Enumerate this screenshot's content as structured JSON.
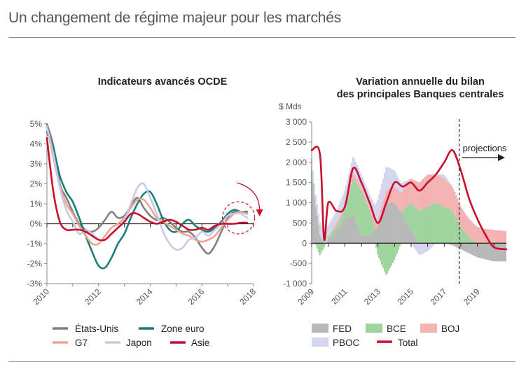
{
  "page_title": "Un changement de régime majeur pour les marchés",
  "colors": {
    "usa": "#808080",
    "euro": "#1a7f7a",
    "g7": "#eda58f",
    "japon": "#c9c9e6",
    "asie": "#c8102e",
    "fed": "#b8b8b8",
    "bce": "#9fd49f",
    "boj": "#f3b3b3",
    "pboc": "#d4d6ee",
    "total": "#c8102e",
    "axis": "#888888",
    "zero": "#222222"
  },
  "chart_data": [
    {
      "type": "line",
      "title": "Indicateurs avancés OCDE",
      "xlabel": "",
      "ylabel": "",
      "xlim": [
        2010,
        2018
      ],
      "ylim": [
        -3,
        5
      ],
      "x_ticks": [
        "2010",
        "2012",
        "2014",
        "2016",
        "2018"
      ],
      "y_ticks": [
        "5%",
        "4%",
        "3%",
        "2%",
        "1%",
        "0%",
        "-1%",
        "-2%",
        "-3%"
      ],
      "x": [
        2010.0,
        2010.25,
        2010.5,
        2010.75,
        2011.0,
        2011.25,
        2011.5,
        2011.75,
        2012.0,
        2012.25,
        2012.5,
        2012.75,
        2013.0,
        2013.25,
        2013.5,
        2013.75,
        2014.0,
        2014.25,
        2014.5,
        2014.75,
        2015.0,
        2015.25,
        2015.5,
        2015.75,
        2016.0,
        2016.25,
        2016.5,
        2016.75,
        2017.0,
        2017.25,
        2017.5,
        2017.75
      ],
      "series": [
        {
          "name": "États-Unis",
          "color_key": "usa",
          "values": [
            5.0,
            3.9,
            2.0,
            1.3,
            0.6,
            0.0,
            -0.3,
            -0.4,
            -0.2,
            0.2,
            0.6,
            0.3,
            0.4,
            0.9,
            1.3,
            0.8,
            0.4,
            0.2,
            0.3,
            0.1,
            -0.2,
            -0.4,
            -0.4,
            -0.7,
            -1.2,
            -1.5,
            -1.1,
            -0.4,
            0.3,
            0.6,
            0.6,
            0.5
          ]
        },
        {
          "name": "Zone euro",
          "color_key": "euro",
          "values": [
            4.6,
            3.8,
            2.4,
            1.6,
            1.1,
            0.3,
            -0.6,
            -1.4,
            -2.1,
            -2.2,
            -1.7,
            -1.0,
            -0.5,
            0.3,
            1.0,
            1.5,
            1.6,
            1.0,
            0.2,
            -0.3,
            -0.4,
            0.0,
            0.2,
            -0.1,
            -0.3,
            -0.4,
            -0.2,
            0.1,
            0.5,
            0.7,
            0.6,
            0.6
          ]
        },
        {
          "name": "G7",
          "color_key": "g7",
          "values": [
            4.9,
            3.3,
            1.9,
            1.0,
            0.5,
            -0.1,
            -0.6,
            -1.0,
            -1.0,
            -0.6,
            -0.2,
            0.0,
            0.3,
            0.8,
            1.2,
            1.2,
            0.8,
            0.3,
            0.1,
            -0.1,
            -0.3,
            -0.5,
            -0.6,
            -0.8,
            -0.9,
            -0.8,
            -0.6,
            -0.2,
            0.2,
            0.5,
            0.6,
            0.5
          ]
        },
        {
          "name": "Japon",
          "color_key": "japon",
          "values": [
            4.8,
            3.5,
            1.8,
            0.7,
            0.1,
            -0.5,
            -0.3,
            -0.5,
            -0.8,
            -0.8,
            -0.5,
            -0.2,
            0.2,
            1.0,
            1.8,
            2.0,
            1.3,
            0.5,
            -0.4,
            -1.0,
            -1.3,
            -1.2,
            -0.8,
            -0.7,
            -0.4,
            -0.6,
            -0.3,
            0.0,
            0.4,
            0.5,
            0.5,
            0.3
          ]
        },
        {
          "name": "Asie",
          "color_key": "asie",
          "values": [
            4.3,
            1.6,
            0.1,
            -0.3,
            -0.3,
            -0.3,
            -0.4,
            -0.6,
            -0.8,
            -0.8,
            -0.5,
            -0.2,
            0.1,
            0.5,
            0.5,
            0.3,
            0.1,
            0.0,
            0.1,
            0.2,
            0.1,
            -0.1,
            -0.3,
            -0.3,
            -0.2,
            -0.3,
            -0.1,
            0.0,
            0.0,
            0.0,
            0.05,
            0.05
          ]
        }
      ],
      "annotation": "highlighted latest readings with downward arrow"
    },
    {
      "type": "bar",
      "title": "Variation annuelle du bilan des principales Banques centrales",
      "title_lines": [
        "Variation annuelle du bilan",
        "des principales Banques centrales"
      ],
      "ylabel": "$ Mds",
      "xlim": [
        2009,
        2020.75
      ],
      "ylim": [
        -1000,
        3000
      ],
      "x_ticks": [
        "2009",
        "2011",
        "2013",
        "2015",
        "2017",
        "2019"
      ],
      "y_ticks": [
        "3 000",
        "2 500",
        "2 000",
        "1 500",
        "1 000",
        "500",
        "0",
        "-500",
        "-1 000"
      ],
      "annotation": "projections",
      "projection_start": 2017.9,
      "x": [
        2009.0,
        2009.5,
        2009.75,
        2010.0,
        2010.5,
        2011.0,
        2011.5,
        2012.0,
        2012.5,
        2013.0,
        2013.5,
        2014.0,
        2014.5,
        2015.0,
        2015.5,
        2016.0,
        2016.5,
        2017.0,
        2017.5,
        2018.0,
        2018.5,
        2019.0,
        2019.5,
        2020.0,
        2020.75
      ],
      "series": [
        {
          "name": "FED",
          "color_key": "fed",
          "values": [
            1600,
            200,
            0,
            50,
            300,
            600,
            700,
            200,
            200,
            400,
            1000,
            1000,
            700,
            300,
            0,
            0,
            0,
            0,
            -50,
            -150,
            -250,
            -350,
            -400,
            -450,
            -450
          ]
        },
        {
          "name": "BCE",
          "color_key": "bce",
          "values": [
            200,
            -300,
            -100,
            100,
            100,
            200,
            900,
            1100,
            600,
            -300,
            -800,
            -400,
            100,
            700,
            800,
            900,
            1000,
            900,
            800,
            400,
            150,
            0,
            0,
            0,
            0
          ]
        },
        {
          "name": "BOJ",
          "color_key": "boj",
          "values": [
            0,
            0,
            0,
            0,
            100,
            100,
            150,
            100,
            100,
            200,
            300,
            400,
            500,
            600,
            700,
            800,
            700,
            700,
            600,
            500,
            450,
            400,
            350,
            330,
            300
          ]
        },
        {
          "name": "PBOC",
          "color_key": "pboc",
          "values": [
            300,
            300,
            400,
            300,
            300,
            400,
            400,
            300,
            300,
            500,
            600,
            400,
            200,
            0,
            -300,
            -200,
            0,
            100,
            0,
            0,
            0,
            0,
            0,
            0,
            0
          ]
        },
        {
          "name": "Total",
          "color_key": "total",
          "values": [
            2300,
            2200,
            100,
            1000,
            800,
            900,
            1850,
            1500,
            1000,
            500,
            1000,
            1500,
            1400,
            1500,
            1300,
            1500,
            1700,
            2000,
            2300,
            1800,
            1100,
            600,
            200,
            -100,
            -150
          ]
        }
      ]
    }
  ],
  "legends": {
    "left": [
      "États-Unis",
      "Zone euro",
      "G7",
      "Japon",
      "Asie"
    ],
    "right": [
      "FED",
      "BCE",
      "BOJ",
      "PBOC",
      "Total"
    ]
  }
}
